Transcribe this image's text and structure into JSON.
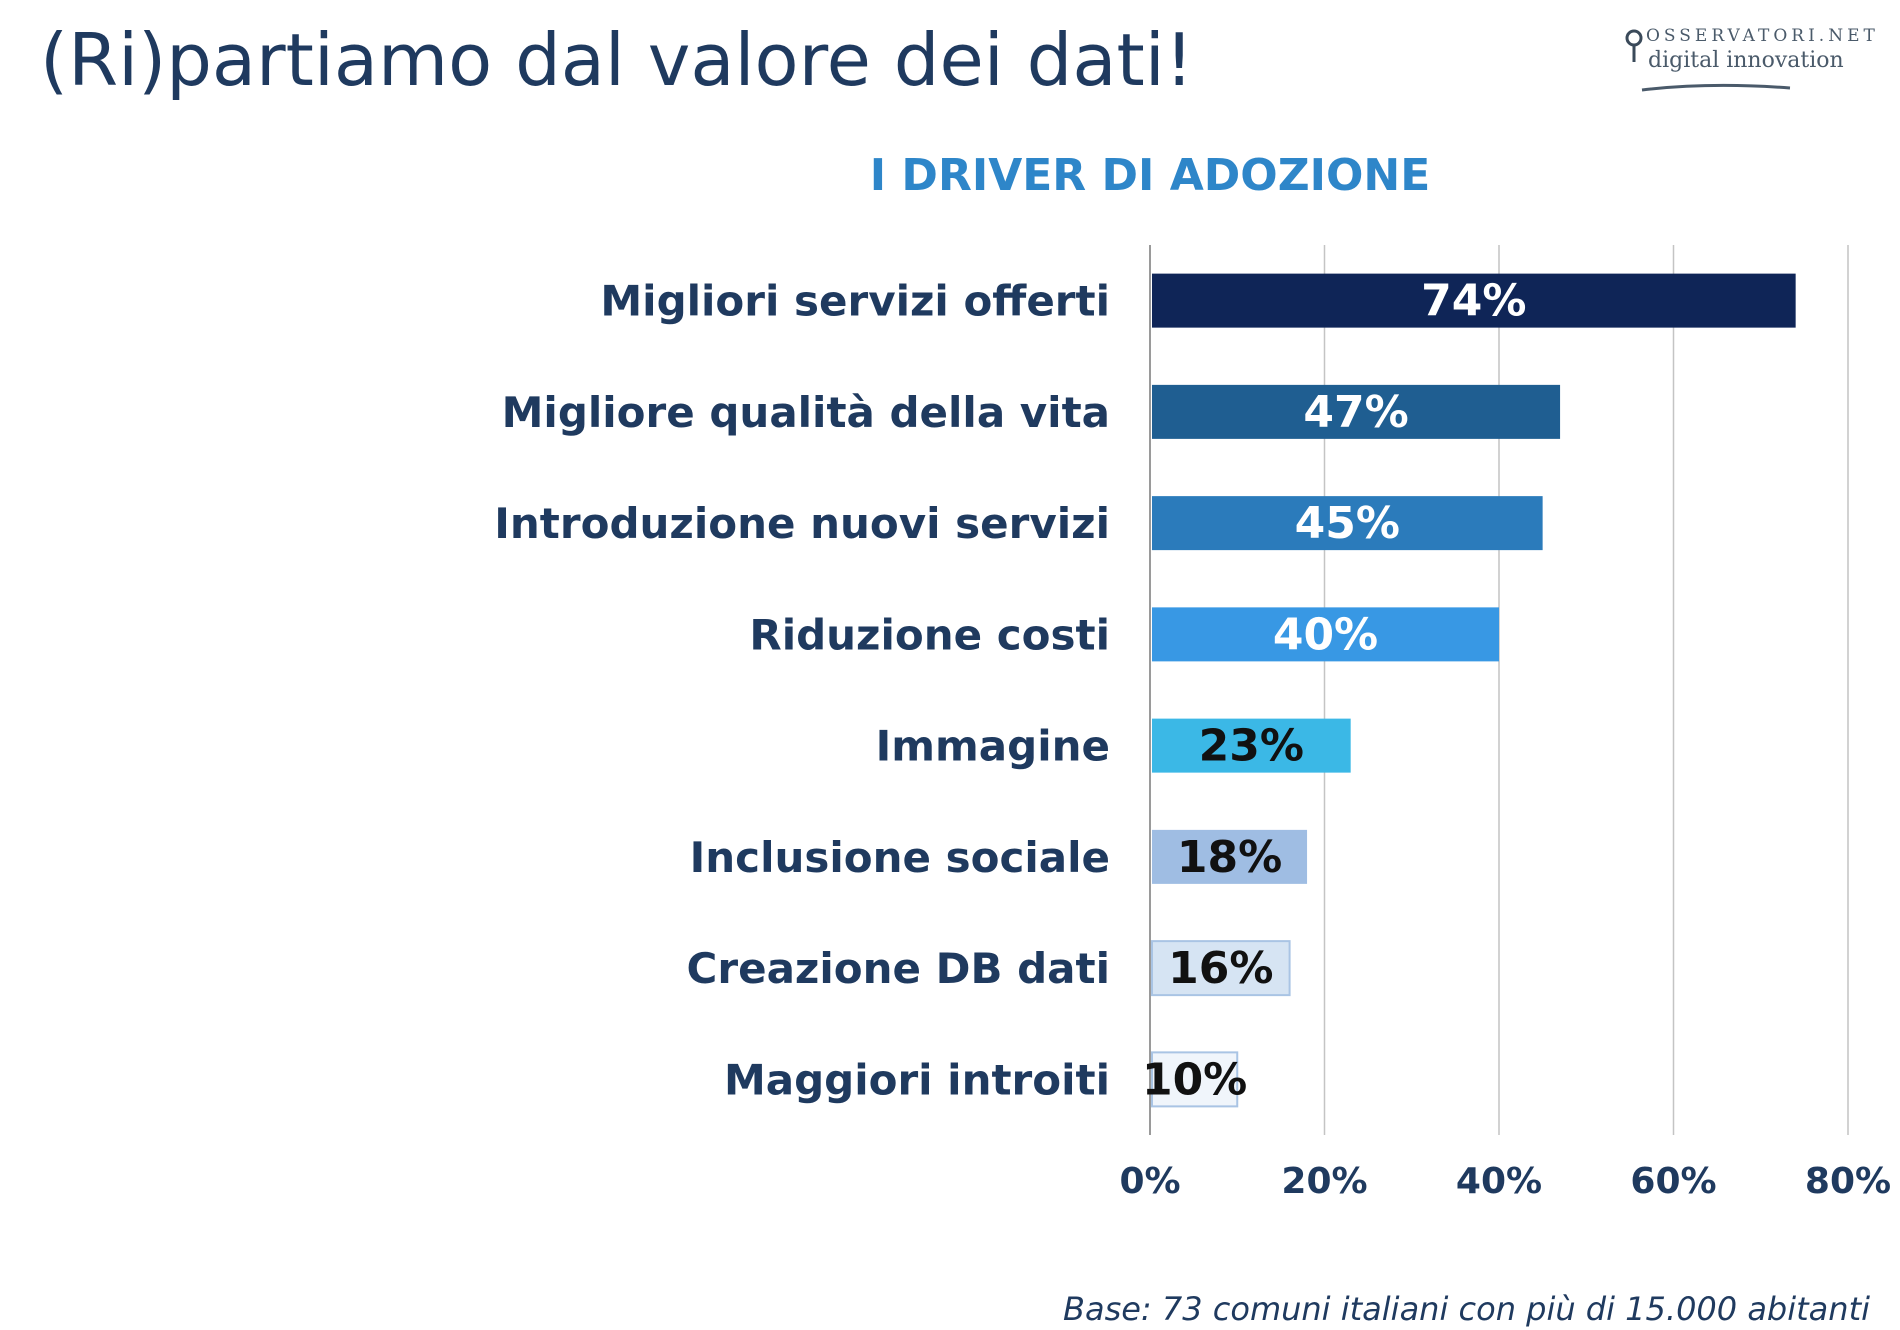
{
  "slide": {
    "title": "(Ri)partiamo dal valore dei dati!",
    "footnote": "Base: 73 comuni italiani con più di 15.000 abitanti"
  },
  "logo": {
    "line1": "OSSERVATORI.NET",
    "line2": "digital innovation"
  },
  "chart_data": {
    "type": "bar",
    "orientation": "horizontal",
    "title": "I DRIVER DI ADOZIONE",
    "categories": [
      "Migliori servizi offerti",
      "Migliore qualità della vita",
      "Introduzione nuovi servizi",
      "Riduzione costi",
      "Immagine",
      "Inclusione sociale",
      "Creazione DB dati",
      "Maggiori introiti"
    ],
    "values": [
      74,
      47,
      45,
      40,
      23,
      18,
      16,
      10
    ],
    "data_labels": [
      "74%",
      "47%",
      "45%",
      "40%",
      "23%",
      "18%",
      "16%",
      "10%"
    ],
    "bar_colors": [
      "#0f2557",
      "#1f5e91",
      "#2b7bbb",
      "#3898e4",
      "#3bb8e6",
      "#9fbde3",
      "#d6e4f3",
      "#f0f5fb"
    ],
    "label_colors": [
      "#ffffff",
      "#ffffff",
      "#ffffff",
      "#ffffff",
      "#111111",
      "#111111",
      "#111111",
      "#111111"
    ],
    "xlim": [
      0,
      80
    ],
    "xticks": [
      0,
      20,
      40,
      60,
      80
    ],
    "xtick_labels": [
      "0%",
      "20%",
      "40%",
      "60%",
      "80%"
    ],
    "grid": true,
    "category_color": "#1f3a5f",
    "title_color": "#2e86c9"
  }
}
